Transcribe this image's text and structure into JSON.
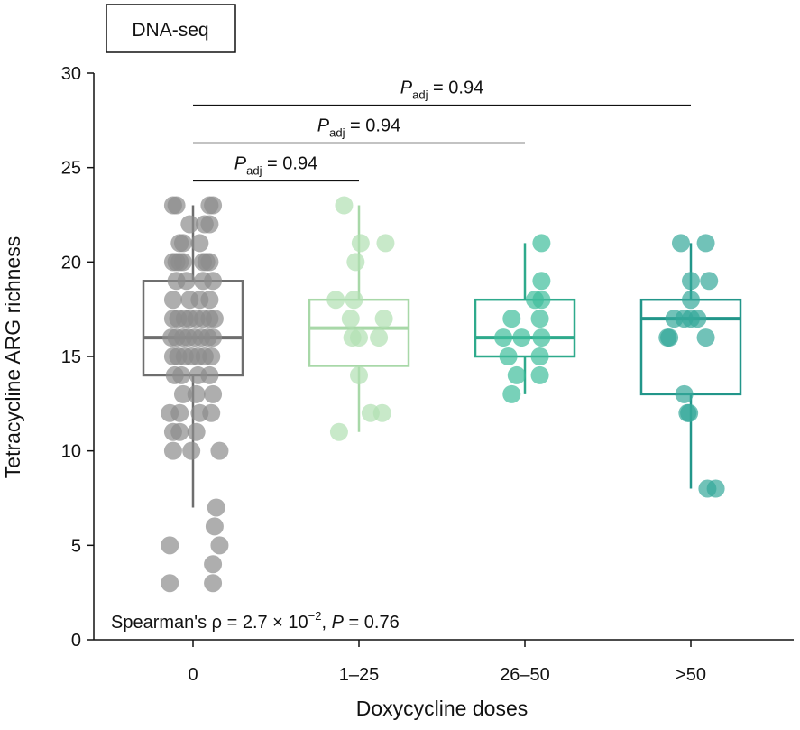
{
  "chart_data": {
    "type": "box",
    "panel_label": "DNA-seq",
    "xlabel": "Doxycycline doses",
    "ylabel": "Tetracycline ARG richness",
    "ylim": [
      0,
      30
    ],
    "yticks": [
      "0",
      "5",
      "10",
      "15",
      "20",
      "25",
      "30"
    ],
    "categories": [
      "0",
      "1–25",
      "26–50",
      ">50"
    ],
    "colors": {
      "0": "#8c8c8c",
      "1–25": "#a8d8a8",
      "26–50": "#35b696",
      ">50": "#2a9d8f"
    },
    "box_colors": [
      "#6e6e6e",
      "#a8d8a8",
      "#2eaa8c",
      "#22968a"
    ],
    "point_colors": [
      "#8c8c8c",
      "#b0e0b2",
      "#3fbd9b",
      "#35a89a"
    ],
    "boxes": [
      {
        "category": "0",
        "q1": 14,
        "median": 16,
        "q3": 19,
        "whisker_low": 7,
        "whisker_high": 23
      },
      {
        "category": "1–25",
        "q1": 14.5,
        "median": 16.5,
        "q3": 18,
        "whisker_low": 11,
        "whisker_high": 23
      },
      {
        "category": "26–50",
        "q1": 15,
        "median": 16,
        "q3": 18,
        "whisker_low": 13,
        "whisker_high": 21
      },
      {
        "category": ">50",
        "q1": 13,
        "median": 17,
        "q3": 18,
        "whisker_low": 8,
        "whisker_high": 21
      }
    ],
    "points": [
      [
        {
          "v": 23,
          "j": -0.1
        },
        {
          "v": 23,
          "j": -0.12
        },
        {
          "v": 23,
          "j": 0.1
        },
        {
          "v": 23,
          "j": 0.12
        },
        {
          "v": 22,
          "j": -0.02
        },
        {
          "v": 22,
          "j": 0.07
        },
        {
          "v": 22,
          "j": 0.1
        },
        {
          "v": 21,
          "j": -0.08
        },
        {
          "v": 21,
          "j": -0.06
        },
        {
          "v": 21,
          "j": 0.04
        },
        {
          "v": 20,
          "j": -0.12
        },
        {
          "v": 20,
          "j": -0.1
        },
        {
          "v": 20,
          "j": -0.08
        },
        {
          "v": 20,
          "j": -0.06
        },
        {
          "v": 20,
          "j": 0.06
        },
        {
          "v": 20,
          "j": 0.08
        },
        {
          "v": 20,
          "j": 0.1
        },
        {
          "v": 19,
          "j": -0.1
        },
        {
          "v": 19,
          "j": -0.04
        },
        {
          "v": 19,
          "j": 0.06
        },
        {
          "v": 19,
          "j": 0.12
        },
        {
          "v": 18,
          "j": -0.12
        },
        {
          "v": 18,
          "j": -0.02
        },
        {
          "v": 18,
          "j": 0.04
        },
        {
          "v": 18,
          "j": 0.1
        },
        {
          "v": 17,
          "j": -0.12
        },
        {
          "v": 17,
          "j": -0.09
        },
        {
          "v": 17,
          "j": -0.05
        },
        {
          "v": 17,
          "j": -0.02
        },
        {
          "v": 17,
          "j": 0.02
        },
        {
          "v": 17,
          "j": 0.06
        },
        {
          "v": 17,
          "j": 0.1
        },
        {
          "v": 17,
          "j": 0.13
        },
        {
          "v": 16,
          "j": -0.13
        },
        {
          "v": 16,
          "j": -0.1
        },
        {
          "v": 16,
          "j": -0.06
        },
        {
          "v": 16,
          "j": -0.03
        },
        {
          "v": 16,
          "j": 0.01
        },
        {
          "v": 16,
          "j": 0.05
        },
        {
          "v": 16,
          "j": 0.09
        },
        {
          "v": 16,
          "j": 0.12
        },
        {
          "v": 15,
          "j": -0.12
        },
        {
          "v": 15,
          "j": -0.09
        },
        {
          "v": 15,
          "j": -0.05
        },
        {
          "v": 15,
          "j": -0.01
        },
        {
          "v": 15,
          "j": 0.03
        },
        {
          "v": 15,
          "j": 0.07
        },
        {
          "v": 15,
          "j": 0.11
        },
        {
          "v": 14,
          "j": -0.11
        },
        {
          "v": 14,
          "j": -0.07
        },
        {
          "v": 14,
          "j": 0.03
        },
        {
          "v": 14,
          "j": 0.1
        },
        {
          "v": 13,
          "j": -0.06
        },
        {
          "v": 13,
          "j": 0.02
        },
        {
          "v": 13,
          "j": 0.12
        },
        {
          "v": 12,
          "j": -0.14
        },
        {
          "v": 12,
          "j": -0.08
        },
        {
          "v": 12,
          "j": 0.04
        },
        {
          "v": 12,
          "j": 0.11
        },
        {
          "v": 11,
          "j": -0.12
        },
        {
          "v": 11,
          "j": -0.08
        },
        {
          "v": 11,
          "j": 0.02
        },
        {
          "v": 10,
          "j": -0.12
        },
        {
          "v": 10,
          "j": -0.01
        },
        {
          "v": 10,
          "j": 0.16
        },
        {
          "v": 7,
          "j": 0.14
        },
        {
          "v": 6,
          "j": 0.13
        },
        {
          "v": 5,
          "j": -0.14
        },
        {
          "v": 5,
          "j": 0.16
        },
        {
          "v": 4,
          "j": 0.12
        },
        {
          "v": 3,
          "j": -0.14
        },
        {
          "v": 3,
          "j": 0.12
        }
      ],
      [
        {
          "v": 23,
          "j": -0.09
        },
        {
          "v": 21,
          "j": 0.16
        },
        {
          "v": 21,
          "j": 0.01
        },
        {
          "v": 20,
          "j": -0.02
        },
        {
          "v": 18,
          "j": -0.14
        },
        {
          "v": 18,
          "j": -0.03
        },
        {
          "v": 17,
          "j": -0.05
        },
        {
          "v": 17,
          "j": 0.15
        },
        {
          "v": 16,
          "j": -0.04
        },
        {
          "v": 16,
          "j": 0.0
        },
        {
          "v": 16,
          "j": 0.12
        },
        {
          "v": 14,
          "j": 0.0
        },
        {
          "v": 12,
          "j": 0.07
        },
        {
          "v": 12,
          "j": 0.14
        },
        {
          "v": 11,
          "j": -0.12
        }
      ],
      [
        {
          "v": 21,
          "j": 0.1
        },
        {
          "v": 19,
          "j": 0.1
        },
        {
          "v": 18,
          "j": 0.06
        },
        {
          "v": 18,
          "j": 0.1
        },
        {
          "v": 17,
          "j": -0.08
        },
        {
          "v": 17,
          "j": 0.09
        },
        {
          "v": 16,
          "j": -0.13
        },
        {
          "v": 16,
          "j": -0.02
        },
        {
          "v": 16,
          "j": 0.1
        },
        {
          "v": 15,
          "j": -0.1
        },
        {
          "v": 15,
          "j": 0.09
        },
        {
          "v": 14,
          "j": -0.05
        },
        {
          "v": 14,
          "j": 0.09
        },
        {
          "v": 13,
          "j": -0.08
        }
      ],
      [
        {
          "v": 21,
          "j": -0.06
        },
        {
          "v": 21,
          "j": 0.09
        },
        {
          "v": 19,
          "j": 0.0
        },
        {
          "v": 19,
          "j": 0.11
        },
        {
          "v": 18,
          "j": 0.0
        },
        {
          "v": 17,
          "j": -0.1
        },
        {
          "v": 17,
          "j": -0.04
        },
        {
          "v": 17,
          "j": 0.04
        },
        {
          "v": 17,
          "j": 0.0
        },
        {
          "v": 16,
          "j": -0.14
        },
        {
          "v": 16,
          "j": -0.13
        },
        {
          "v": 16,
          "j": 0.09
        },
        {
          "v": 13,
          "j": -0.04
        },
        {
          "v": 12,
          "j": -0.02
        },
        {
          "v": 12,
          "j": -0.01
        },
        {
          "v": 8,
          "j": 0.1
        },
        {
          "v": 8,
          "j": 0.15
        }
      ]
    ],
    "brackets": [
      {
        "from": "0",
        "to": "1–25",
        "y": 24.3,
        "p_symbol": "P",
        "p_sub": "adj",
        "p_value": " = 0.94"
      },
      {
        "from": "0",
        "to": "26–50",
        "y": 26.3,
        "p_symbol": "P",
        "p_sub": "adj",
        "p_value": " = 0.94"
      },
      {
        "from": "0",
        "to": ">50",
        "y": 28.3,
        "p_symbol": "P",
        "p_sub": "adj",
        "p_value": " = 0.94"
      }
    ],
    "stats_annotation": {
      "prefix": "Spearman's ρ = 2.7 × 10",
      "exponent": "−2",
      "separator": ", ",
      "p_symbol": "P",
      "p_value": " = 0.76"
    }
  }
}
